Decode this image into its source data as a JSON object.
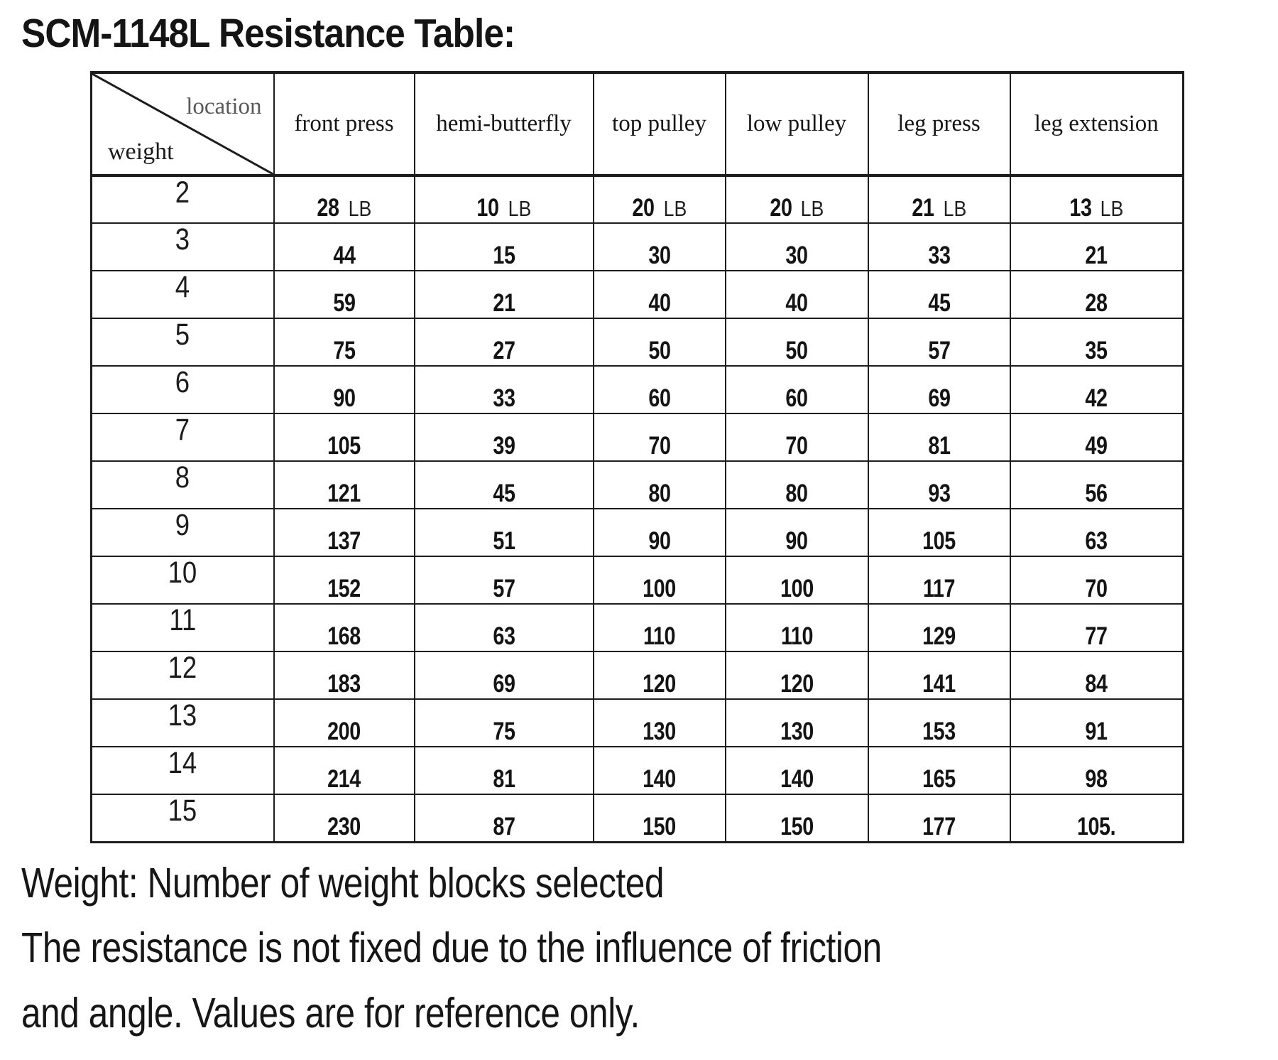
{
  "title": "SCM-1148L Resistance Table:",
  "table": {
    "corner": {
      "top_label": "location",
      "bottom_label": "weight"
    },
    "columns": [
      "front press",
      "hemi-butterfly",
      "top pulley",
      "low pulley",
      "leg press",
      "leg extension"
    ],
    "unit": "LB",
    "rows": [
      {
        "weight": "2",
        "show_unit": true,
        "values": [
          "28",
          "10",
          "20",
          "20",
          "21",
          "13"
        ]
      },
      {
        "weight": "3",
        "show_unit": false,
        "values": [
          "44",
          "15",
          "30",
          "30",
          "33",
          "21"
        ]
      },
      {
        "weight": "4",
        "show_unit": false,
        "values": [
          "59",
          "21",
          "40",
          "40",
          "45",
          "28"
        ]
      },
      {
        "weight": "5",
        "show_unit": false,
        "values": [
          "75",
          "27",
          "50",
          "50",
          "57",
          "35"
        ]
      },
      {
        "weight": "6",
        "show_unit": false,
        "values": [
          "90",
          "33",
          "60",
          "60",
          "69",
          "42"
        ]
      },
      {
        "weight": "7",
        "show_unit": false,
        "values": [
          "105",
          "39",
          "70",
          "70",
          "81",
          "49"
        ]
      },
      {
        "weight": "8",
        "show_unit": false,
        "values": [
          "121",
          "45",
          "80",
          "80",
          "93",
          "56"
        ]
      },
      {
        "weight": "9",
        "show_unit": false,
        "values": [
          "137",
          "51",
          "90",
          "90",
          "105",
          "63"
        ]
      },
      {
        "weight": "10",
        "show_unit": false,
        "values": [
          "152",
          "57",
          "100",
          "100",
          "117",
          "70"
        ]
      },
      {
        "weight": "11",
        "show_unit": false,
        "values": [
          "168",
          "63",
          "110",
          "110",
          "129",
          "77"
        ]
      },
      {
        "weight": "12",
        "show_unit": false,
        "values": [
          "183",
          "69",
          "120",
          "120",
          "141",
          "84"
        ]
      },
      {
        "weight": "13",
        "show_unit": false,
        "values": [
          "200",
          "75",
          "130",
          "130",
          "153",
          "91"
        ]
      },
      {
        "weight": "14",
        "show_unit": false,
        "values": [
          "214",
          "81",
          "140",
          "140",
          "165",
          "98"
        ]
      },
      {
        "weight": "15",
        "show_unit": false,
        "values": [
          "230",
          "87",
          "150",
          "150",
          "177",
          "105."
        ]
      }
    ]
  },
  "notes": {
    "line1": "Weight: Number of weight blocks selected",
    "line2": "The resistance is not fixed due to the influence of friction",
    "line3": "and angle. Values are for reference only."
  },
  "colors": {
    "text": "#161616",
    "muted_label": "#595959",
    "border": "#1d1d1d",
    "background": "#ffffff"
  }
}
